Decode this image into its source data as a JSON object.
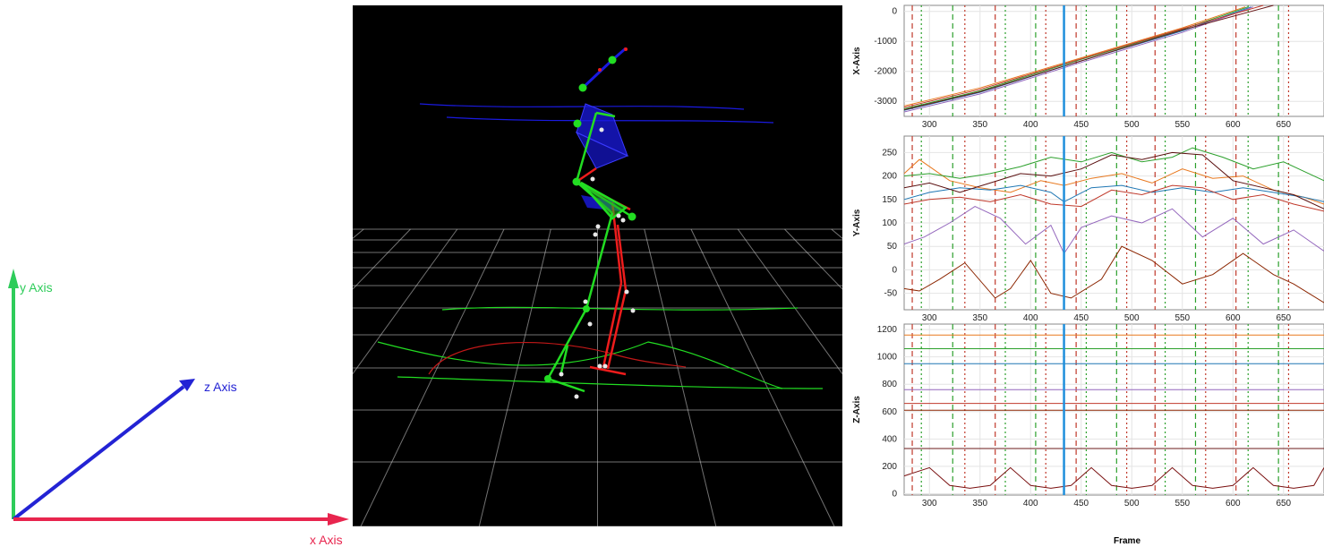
{
  "axes": {
    "x_label": "x Axis",
    "y_label": "y Axis",
    "z_label": "z Axis",
    "colors": {
      "x": "#e8254e",
      "y": "#2ecc5a",
      "z": "#2323d4"
    }
  },
  "viewport": {
    "background": "#000000",
    "grid_color": "#cfcfcf",
    "left_color": "#22dd22",
    "right_color": "#ee1c1c",
    "trunk_color": "#1a1ae0"
  },
  "plots": {
    "x_axis_label": "Frame",
    "x_ticks": [
      "300",
      "350",
      "400",
      "450",
      "500",
      "550",
      "600",
      "650"
    ],
    "current_frame_color": "#1f8fdc",
    "panels": [
      {
        "ylabel": "X-Axis",
        "y_ticks": [
          "0",
          "-1000",
          "-2000",
          "-3000"
        ]
      },
      {
        "ylabel": "Y-Axis",
        "y_ticks": [
          "250",
          "200",
          "150",
          "100",
          "50",
          "0",
          "-50"
        ]
      },
      {
        "ylabel": "Z-Axis",
        "y_ticks": [
          "1200",
          "1000",
          "800",
          "600",
          "400",
          "200",
          "0"
        ]
      }
    ]
  },
  "chart_data": [
    {
      "type": "line",
      "ylabel": "X-Axis",
      "xlim": [
        275,
        690
      ],
      "ylim": [
        -3500,
        200
      ],
      "current_frame": 433,
      "series": [
        {
          "color": "#e8781e",
          "x": [
            275,
            350,
            450,
            550,
            612
          ],
          "y": [
            -3150,
            -2550,
            -1550,
            -550,
            150
          ]
        },
        {
          "color": "#2ca02c",
          "x": [
            275,
            350,
            450,
            550,
            615
          ],
          "y": [
            -3250,
            -2650,
            -1600,
            -600,
            150
          ]
        },
        {
          "color": "#1f77b4",
          "x": [
            275,
            350,
            450,
            550,
            618
          ],
          "y": [
            -3300,
            -2700,
            -1650,
            -650,
            150
          ]
        },
        {
          "color": "#9467bd",
          "x": [
            275,
            350,
            450,
            550,
            620
          ],
          "y": [
            -3350,
            -2750,
            -1700,
            -700,
            150
          ]
        },
        {
          "color": "#c0392b",
          "x": [
            275,
            350,
            450,
            550,
            630
          ],
          "y": [
            -3200,
            -2600,
            -1580,
            -580,
            200
          ]
        },
        {
          "color": "#6b1a1a",
          "x": [
            275,
            350,
            450,
            550,
            640
          ],
          "y": [
            -3280,
            -2680,
            -1650,
            -620,
            200
          ]
        }
      ]
    },
    {
      "type": "line",
      "ylabel": "Y-Axis",
      "xlim": [
        275,
        690
      ],
      "ylim": [
        -85,
        285
      ],
      "current_frame": 433,
      "series": [
        {
          "color": "#e8781e",
          "x": [
            275,
            290,
            320,
            350,
            380,
            410,
            433,
            460,
            490,
            520,
            550,
            580,
            610,
            640,
            670,
            690
          ],
          "y": [
            205,
            235,
            190,
            175,
            165,
            190,
            180,
            195,
            205,
            185,
            215,
            195,
            200,
            170,
            155,
            140
          ]
        },
        {
          "color": "#2ca02c",
          "x": [
            275,
            300,
            330,
            360,
            390,
            420,
            450,
            480,
            510,
            540,
            560,
            590,
            620,
            650,
            670,
            690
          ],
          "y": [
            200,
            205,
            195,
            205,
            220,
            240,
            230,
            250,
            230,
            240,
            260,
            240,
            215,
            230,
            210,
            190
          ]
        },
        {
          "color": "#1f77b4",
          "x": [
            275,
            300,
            330,
            360,
            390,
            420,
            433,
            460,
            490,
            520,
            550,
            580,
            610,
            640,
            670,
            690
          ],
          "y": [
            150,
            165,
            175,
            170,
            180,
            165,
            145,
            175,
            180,
            165,
            175,
            165,
            175,
            165,
            155,
            145
          ]
        },
        {
          "color": "#9467bd",
          "x": [
            275,
            295,
            320,
            345,
            370,
            395,
            420,
            433,
            450,
            480,
            510,
            540,
            570,
            600,
            630,
            660,
            690
          ],
          "y": [
            55,
            70,
            100,
            135,
            110,
            55,
            95,
            35,
            90,
            115,
            100,
            130,
            70,
            110,
            55,
            85,
            40
          ]
        },
        {
          "color": "#c0392b",
          "x": [
            275,
            300,
            330,
            360,
            390,
            420,
            450,
            480,
            510,
            540,
            570,
            600,
            630,
            660,
            690
          ],
          "y": [
            140,
            150,
            155,
            145,
            160,
            140,
            135,
            170,
            160,
            180,
            175,
            150,
            160,
            140,
            125
          ]
        },
        {
          "color": "#8b2500",
          "x": [
            275,
            290,
            310,
            335,
            365,
            380,
            400,
            420,
            440,
            470,
            490,
            520,
            550,
            580,
            610,
            640,
            660,
            690
          ],
          "y": [
            -40,
            -45,
            -20,
            15,
            -60,
            -40,
            20,
            -50,
            -60,
            -20,
            50,
            20,
            -30,
            -10,
            35,
            -10,
            -30,
            -70
          ]
        },
        {
          "color": "#5a0f0f",
          "x": [
            275,
            300,
            330,
            360,
            390,
            420,
            450,
            480,
            510,
            540,
            570,
            600,
            630,
            660,
            690
          ],
          "y": [
            175,
            185,
            165,
            185,
            205,
            200,
            215,
            245,
            235,
            250,
            245,
            190,
            175,
            160,
            130
          ]
        }
      ]
    },
    {
      "type": "line",
      "ylabel": "Z-Axis",
      "xlabel": "Frame",
      "xlim": [
        275,
        690
      ],
      "ylim": [
        -10,
        1240
      ],
      "current_frame": 433,
      "series": [
        {
          "color": "#e8781e",
          "x": [
            275,
            690
          ],
          "y": [
            1160,
            1160
          ]
        },
        {
          "color": "#2ca02c",
          "x": [
            275,
            690
          ],
          "y": [
            1060,
            1060
          ]
        },
        {
          "color": "#1f77b4",
          "x": [
            275,
            690
          ],
          "y": [
            950,
            950
          ]
        },
        {
          "color": "#9467bd",
          "x": [
            275,
            690
          ],
          "y": [
            760,
            760
          ]
        },
        {
          "color": "#c0392b",
          "x": [
            275,
            690
          ],
          "y": [
            660,
            660
          ]
        },
        {
          "color": "#8b2500",
          "x": [
            275,
            690
          ],
          "y": [
            610,
            610
          ]
        },
        {
          "color": "#6b1a1a",
          "x": [
            275,
            690
          ],
          "y": [
            330,
            330
          ]
        },
        {
          "color": "#7a1010",
          "x": [
            275,
            300,
            320,
            340,
            360,
            380,
            400,
            420,
            440,
            460,
            480,
            500,
            520,
            540,
            560,
            580,
            600,
            620,
            640,
            660,
            680,
            690
          ],
          "y": [
            130,
            190,
            60,
            40,
            60,
            190,
            60,
            40,
            60,
            190,
            60,
            40,
            60,
            190,
            60,
            40,
            60,
            190,
            60,
            40,
            60,
            190
          ]
        }
      ]
    }
  ]
}
